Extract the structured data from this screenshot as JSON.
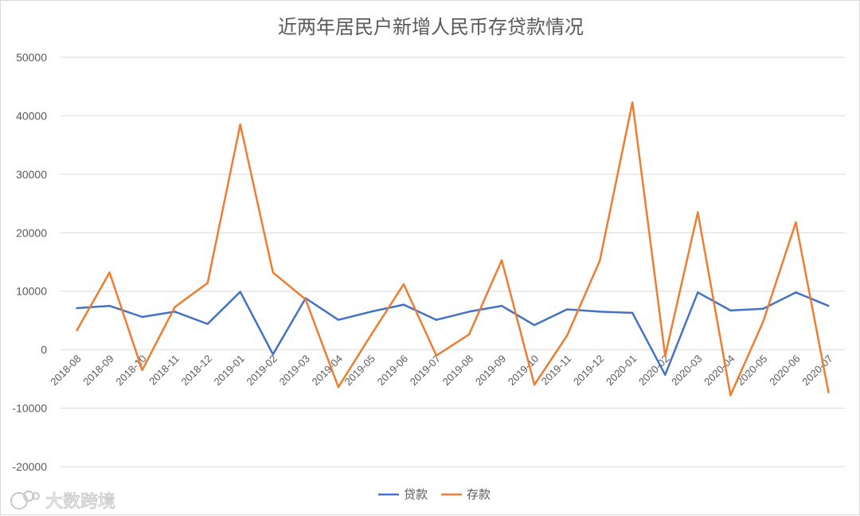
{
  "chart_data": {
    "type": "line",
    "title": "近两年居民户新增人民币存贷款情况",
    "xlabel": "",
    "ylabel": "",
    "ylim": [
      -20000,
      50000
    ],
    "yticks": [
      "50000",
      "40000",
      "30000",
      "20000",
      "10000",
      "0",
      "-10000",
      "-20000"
    ],
    "categories": [
      "2018-08",
      "2018-09",
      "2018-10",
      "2018-11",
      "2018-12",
      "2019-01",
      "2019-02",
      "2019-03",
      "2019-04",
      "2019-05",
      "2019-06",
      "2019-07",
      "2019-08",
      "2019-09",
      "2019-10",
      "2019-11",
      "2019-12",
      "2020-01",
      "2020-02",
      "2020-03",
      "2020-04",
      "2020-05",
      "2020-06",
      "2020-07"
    ],
    "series": [
      {
        "name": "贷款",
        "color": "#4472c4",
        "values": [
          7100,
          7500,
          5600,
          6500,
          4400,
          9900,
          -800,
          8800,
          5100,
          6500,
          7700,
          5100,
          6500,
          7500,
          4200,
          6900,
          6500,
          6300,
          -4300,
          9800,
          6700,
          7000,
          9800,
          7500
        ]
      },
      {
        "name": "存款",
        "color": "#ed7d31",
        "values": [
          3300,
          13200,
          -3500,
          7300,
          11400,
          38500,
          13200,
          8600,
          -6400,
          2500,
          11200,
          -1000,
          2600,
          15300,
          -6000,
          2400,
          15200,
          42300,
          -1100,
          23500,
          -7800,
          4800,
          21800,
          -7300
        ]
      }
    ],
    "grid": true,
    "legend_position": "bottom"
  },
  "watermark": {
    "text": "大数跨境"
  }
}
